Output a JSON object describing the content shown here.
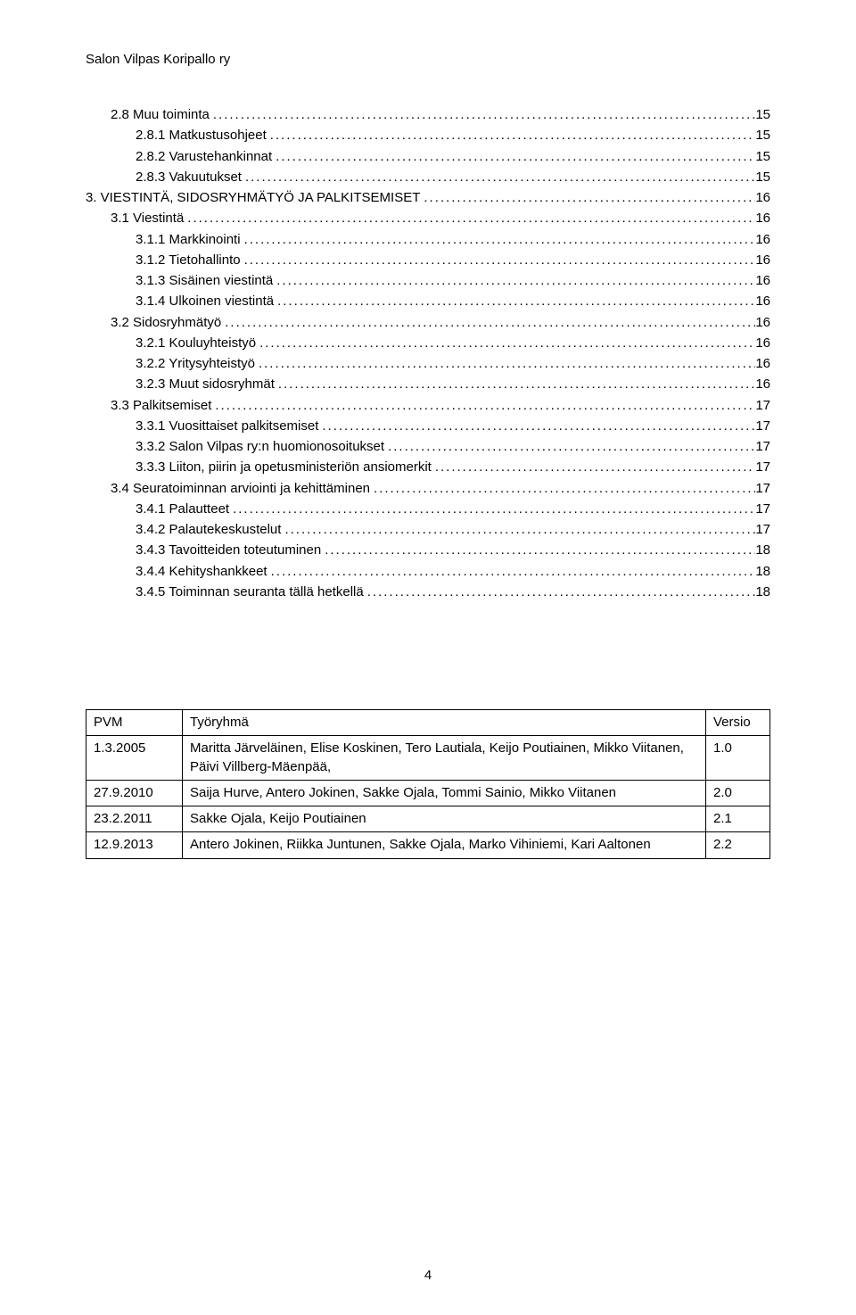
{
  "header": "Salon Vilpas Koripallo ry",
  "pageNumber": "4",
  "toc": [
    {
      "indent": 1,
      "label": "2.8 Muu toiminta",
      "page": "15"
    },
    {
      "indent": 2,
      "label": "2.8.1 Matkustusohjeet",
      "page": "15"
    },
    {
      "indent": 2,
      "label": "2.8.2 Varustehankinnat",
      "page": "15"
    },
    {
      "indent": 2,
      "label": "2.8.3 Vakuutukset",
      "page": "15"
    },
    {
      "indent": 0,
      "label": "3. VIESTINTÄ, SIDOSRYHMÄTYÖ JA PALKITSEMISET",
      "page": "16"
    },
    {
      "indent": 1,
      "label": "3.1 Viestintä",
      "page": "16"
    },
    {
      "indent": 2,
      "label": "3.1.1 Markkinointi",
      "page": "16"
    },
    {
      "indent": 2,
      "label": "3.1.2 Tietohallinto",
      "page": "16"
    },
    {
      "indent": 2,
      "label": "3.1.3 Sisäinen viestintä",
      "page": "16"
    },
    {
      "indent": 2,
      "label": "3.1.4 Ulkoinen viestintä",
      "page": "16"
    },
    {
      "indent": 1,
      "label": "3.2 Sidosryhmätyö",
      "page": "16"
    },
    {
      "indent": 2,
      "label": "3.2.1 Kouluyhteistyö",
      "page": "16"
    },
    {
      "indent": 2,
      "label": "3.2.2 Yritysyhteistyö",
      "page": "16"
    },
    {
      "indent": 2,
      "label": "3.2.3 Muut sidosryhmät",
      "page": "16"
    },
    {
      "indent": 1,
      "label": "3.3 Palkitsemiset",
      "page": "17"
    },
    {
      "indent": 2,
      "label": "3.3.1 Vuosittaiset palkitsemiset",
      "page": "17"
    },
    {
      "indent": 2,
      "label": "3.3.2 Salon Vilpas ry:n huomionosoitukset",
      "page": "17"
    },
    {
      "indent": 2,
      "label": "3.3.3 Liiton, piirin ja opetusministeriön ansiomerkit",
      "page": "17"
    },
    {
      "indent": 1,
      "label": "3.4 Seuratoiminnan arviointi ja kehittäminen",
      "page": "17"
    },
    {
      "indent": 2,
      "label": "3.4.1 Palautteet",
      "page": "17"
    },
    {
      "indent": 2,
      "label": "3.4.2 Palautekeskustelut",
      "page": "17"
    },
    {
      "indent": 2,
      "label": "3.4.3 Tavoitteiden toteutuminen",
      "page": "18"
    },
    {
      "indent": 2,
      "label": "3.4.4 Kehityshankkeet",
      "page": "18"
    },
    {
      "indent": 2,
      "label": "3.4.5 Toiminnan seuranta tällä hetkellä",
      "page": "18"
    }
  ],
  "revisionTable": {
    "headers": {
      "date": "PVM",
      "desc": "Työryhmä",
      "version": "Versio"
    },
    "rows": [
      {
        "date": "1.3.2005",
        "desc": "Maritta Järveläinen, Elise Koskinen, Tero Lautiala, Keijo Poutiainen, Mikko Viitanen, Päivi Villberg-Mäenpää,",
        "version": "1.0"
      },
      {
        "date": "27.9.2010",
        "desc": "Saija Hurve, Antero Jokinen, Sakke Ojala, Tommi Sainio, Mikko Viitanen",
        "version": "2.0"
      },
      {
        "date": "23.2.2011",
        "desc": "Sakke Ojala, Keijo Poutiainen",
        "version": "2.1"
      },
      {
        "date": "12.9.2013",
        "desc": "Antero Jokinen, Riikka Juntunen, Sakke Ojala, Marko Vihiniemi, Kari Aaltonen",
        "version": "2.2"
      }
    ]
  }
}
